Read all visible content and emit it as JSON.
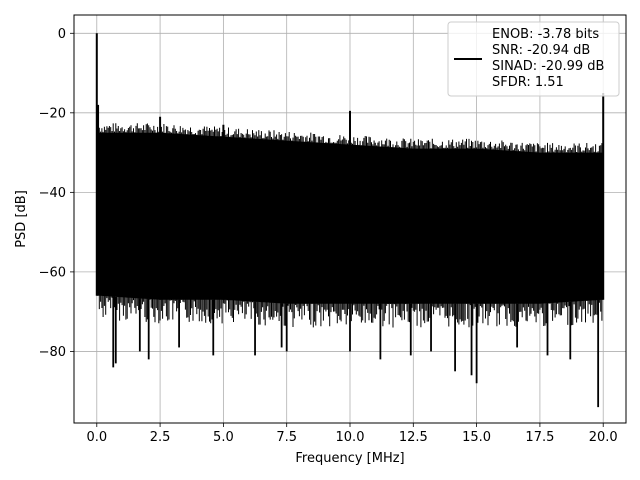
{
  "chart_data": {
    "type": "line",
    "xlabel": "Frequency [MHz]",
    "ylabel": "PSD [dB]",
    "xlim": [
      -0.9,
      20.9
    ],
    "ylim": [
      -98,
      4.6
    ],
    "x_ticks": [
      0.0,
      2.5,
      5.0,
      7.5,
      10.0,
      12.5,
      15.0,
      17.5,
      20.0
    ],
    "x_tick_labels": [
      "0.0",
      "2.5",
      "5.0",
      "7.5",
      "10.0",
      "12.5",
      "15.0",
      "17.5",
      "20.0"
    ],
    "y_ticks": [
      0,
      -20,
      -40,
      -60,
      -80
    ],
    "y_tick_labels": [
      "0",
      "−20",
      "−40",
      "−60",
      "−80"
    ],
    "grid": true,
    "legend": {
      "placement": "upper-right",
      "entries": [
        "ENOB: -3.78 bits",
        "SNR: -20.94 dB",
        "SINAD: -20.99 dB",
        "SFDR: 1.51"
      ]
    },
    "series": [
      {
        "color": "#000000",
        "noise_floor_upper": [
          {
            "x": 0.1,
            "y": -25
          },
          {
            "x": 2.5,
            "y": -25
          },
          {
            "x": 5.0,
            "y": -26
          },
          {
            "x": 7.5,
            "y": -27
          },
          {
            "x": 10.0,
            "y": -28
          },
          {
            "x": 12.5,
            "y": -29
          },
          {
            "x": 15.0,
            "y": -29
          },
          {
            "x": 17.5,
            "y": -30
          },
          {
            "x": 20.0,
            "y": -30
          }
        ],
        "noise_floor_lower": [
          {
            "x": 0.1,
            "y": -66
          },
          {
            "x": 2.5,
            "y": -67
          },
          {
            "x": 5.0,
            "y": -67
          },
          {
            "x": 7.5,
            "y": -68
          },
          {
            "x": 10.0,
            "y": -68
          },
          {
            "x": 12.5,
            "y": -68
          },
          {
            "x": 15.0,
            "y": -68
          },
          {
            "x": 17.5,
            "y": -68
          },
          {
            "x": 20.0,
            "y": -67
          }
        ],
        "peaks": [
          {
            "x": 0.0,
            "y": 0
          },
          {
            "x": 0.05,
            "y": -18
          },
          {
            "x": 2.5,
            "y": -21
          },
          {
            "x": 5.0,
            "y": -23
          },
          {
            "x": 10.0,
            "y": -19.5
          },
          {
            "x": 20.0,
            "y": -15
          }
        ],
        "dips": [
          {
            "x": 0.65,
            "y": -84
          },
          {
            "x": 0.75,
            "y": -83
          },
          {
            "x": 1.7,
            "y": -80
          },
          {
            "x": 2.05,
            "y": -82
          },
          {
            "x": 3.25,
            "y": -79
          },
          {
            "x": 4.6,
            "y": -81
          },
          {
            "x": 6.25,
            "y": -81
          },
          {
            "x": 7.3,
            "y": -79
          },
          {
            "x": 7.5,
            "y": -80
          },
          {
            "x": 10.0,
            "y": -80
          },
          {
            "x": 11.2,
            "y": -82
          },
          {
            "x": 12.4,
            "y": -81
          },
          {
            "x": 13.2,
            "y": -80
          },
          {
            "x": 14.15,
            "y": -85
          },
          {
            "x": 14.8,
            "y": -86
          },
          {
            "x": 15.0,
            "y": -88
          },
          {
            "x": 16.6,
            "y": -79
          },
          {
            "x": 17.8,
            "y": -81
          },
          {
            "x": 18.7,
            "y": -82
          },
          {
            "x": 19.8,
            "y": -94
          }
        ]
      }
    ]
  }
}
